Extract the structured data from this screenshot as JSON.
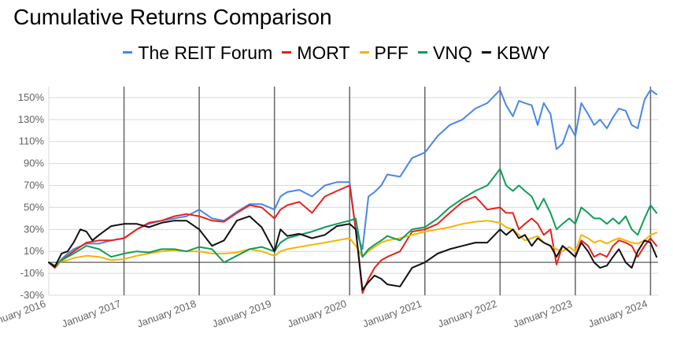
{
  "chart_data": {
    "type": "line",
    "title": "Cumulative Returns Comparison",
    "xlabel": "",
    "ylabel": "",
    "ylim": [
      -30,
      160
    ],
    "grid": true,
    "legend_position": "top",
    "y_ticks": [
      "-30%",
      "-10%",
      "10%",
      "30%",
      "50%",
      "70%",
      "90%",
      "110%",
      "130%",
      "150%"
    ],
    "y_tick_values": [
      -30,
      -10,
      10,
      30,
      50,
      70,
      90,
      110,
      130,
      150
    ],
    "x_ticks": [
      "January 2016",
      "January 2017",
      "January 2018",
      "January 2019",
      "January 2020",
      "January 2021",
      "January 2022",
      "January 2023",
      "January 2024"
    ],
    "x_tick_values": [
      2016,
      2017,
      2018,
      2019,
      2020,
      2021,
      2022,
      2023,
      2024
    ],
    "xlim": [
      2016,
      2024.1
    ],
    "series": [
      {
        "name": "The REIT Forum",
        "color": "#4a86e8",
        "x": [
          2016.0,
          2016.08,
          2016.17,
          2016.25,
          2016.33,
          2016.5,
          2016.67,
          2016.83,
          2017.0,
          2017.17,
          2017.33,
          2017.5,
          2017.67,
          2017.83,
          2018.0,
          2018.17,
          2018.33,
          2018.5,
          2018.67,
          2018.83,
          2019.0,
          2019.08,
          2019.17,
          2019.33,
          2019.5,
          2019.67,
          2019.83,
          2020.0,
          2020.08,
          2020.17,
          2020.25,
          2020.33,
          2020.42,
          2020.5,
          2020.67,
          2020.83,
          2021.0,
          2021.17,
          2021.33,
          2021.5,
          2021.67,
          2021.83,
          2022.0,
          2022.08,
          2022.17,
          2022.25,
          2022.33,
          2022.42,
          2022.5,
          2022.58,
          2022.67,
          2022.75,
          2022.83,
          2022.92,
          2023.0,
          2023.08,
          2023.17,
          2023.25,
          2023.33,
          2023.42,
          2023.5,
          2023.58,
          2023.67,
          2023.75,
          2023.83,
          2023.92,
          2024.0,
          2024.08
        ],
        "values": [
          0,
          -5,
          3,
          8,
          12,
          17,
          17,
          20,
          22,
          30,
          35,
          38,
          40,
          42,
          48,
          40,
          38,
          46,
          53,
          53,
          48,
          60,
          64,
          66,
          60,
          70,
          73,
          73,
          30,
          12,
          60,
          64,
          70,
          80,
          78,
          95,
          100,
          115,
          125,
          130,
          140,
          145,
          157,
          143,
          133,
          147,
          145,
          143,
          125,
          145,
          135,
          103,
          108,
          125,
          115,
          145,
          135,
          125,
          130,
          122,
          132,
          140,
          138,
          125,
          122,
          148,
          157,
          153
        ]
      },
      {
        "name": "MORT",
        "color": "#e8221a",
        "x": [
          2016.0,
          2016.08,
          2016.17,
          2016.25,
          2016.33,
          2016.5,
          2016.67,
          2016.83,
          2017.0,
          2017.17,
          2017.33,
          2017.5,
          2017.67,
          2017.83,
          2018.0,
          2018.17,
          2018.33,
          2018.5,
          2018.67,
          2018.83,
          2019.0,
          2019.08,
          2019.17,
          2019.33,
          2019.5,
          2019.67,
          2019.83,
          2020.0,
          2020.08,
          2020.17,
          2020.25,
          2020.33,
          2020.42,
          2020.5,
          2020.67,
          2020.83,
          2021.0,
          2021.17,
          2021.33,
          2021.5,
          2021.67,
          2021.83,
          2022.0,
          2022.08,
          2022.17,
          2022.25,
          2022.33,
          2022.42,
          2022.5,
          2022.58,
          2022.67,
          2022.75,
          2022.83,
          2022.92,
          2023.0,
          2023.08,
          2023.17,
          2023.25,
          2023.33,
          2023.42,
          2023.5,
          2023.58,
          2023.67,
          2023.75,
          2023.83,
          2023.92,
          2024.0,
          2024.08
        ],
        "values": [
          0,
          -5,
          2,
          6,
          10,
          18,
          20,
          20,
          22,
          30,
          36,
          38,
          42,
          44,
          42,
          38,
          37,
          45,
          52,
          50,
          40,
          48,
          52,
          55,
          45,
          60,
          65,
          70,
          30,
          -28,
          -15,
          -5,
          2,
          5,
          10,
          28,
          30,
          35,
          45,
          55,
          60,
          48,
          50,
          45,
          45,
          30,
          35,
          40,
          35,
          25,
          30,
          -2,
          15,
          10,
          5,
          20,
          15,
          5,
          8,
          5,
          15,
          20,
          18,
          15,
          5,
          15,
          22,
          15
        ]
      },
      {
        "name": "PFF",
        "color": "#f4b400",
        "x": [
          2016.0,
          2016.08,
          2016.17,
          2016.25,
          2016.33,
          2016.5,
          2016.67,
          2016.83,
          2017.0,
          2017.17,
          2017.33,
          2017.5,
          2017.67,
          2017.83,
          2018.0,
          2018.17,
          2018.33,
          2018.5,
          2018.67,
          2018.83,
          2019.0,
          2019.08,
          2019.17,
          2019.33,
          2019.5,
          2019.67,
          2019.83,
          2020.0,
          2020.08,
          2020.17,
          2020.25,
          2020.33,
          2020.42,
          2020.5,
          2020.67,
          2020.83,
          2021.0,
          2021.17,
          2021.33,
          2021.5,
          2021.67,
          2021.83,
          2022.0,
          2022.08,
          2022.17,
          2022.25,
          2022.33,
          2022.42,
          2022.5,
          2022.58,
          2022.67,
          2022.75,
          2022.83,
          2022.92,
          2023.0,
          2023.08,
          2023.17,
          2023.25,
          2023.33,
          2023.42,
          2023.5,
          2023.58,
          2023.67,
          2023.75,
          2023.83,
          2023.92,
          2024.0,
          2024.08
        ],
        "values": [
          0,
          -3,
          1,
          2,
          4,
          6,
          5,
          2,
          3,
          6,
          8,
          10,
          11,
          10,
          10,
          8,
          8,
          9,
          12,
          10,
          6,
          10,
          12,
          14,
          16,
          18,
          20,
          22,
          15,
          5,
          10,
          14,
          18,
          20,
          22,
          25,
          28,
          30,
          32,
          35,
          37,
          38,
          36,
          32,
          30,
          25,
          20,
          22,
          24,
          18,
          15,
          12,
          10,
          14,
          10,
          25,
          22,
          18,
          20,
          17,
          20,
          22,
          20,
          18,
          17,
          20,
          25,
          27
        ]
      },
      {
        "name": "VNQ",
        "color": "#0f9d58",
        "x": [
          2016.0,
          2016.08,
          2016.17,
          2016.25,
          2016.33,
          2016.5,
          2016.67,
          2016.83,
          2017.0,
          2017.17,
          2017.33,
          2017.5,
          2017.67,
          2017.83,
          2018.0,
          2018.17,
          2018.33,
          2018.5,
          2018.67,
          2018.83,
          2019.0,
          2019.08,
          2019.17,
          2019.33,
          2019.5,
          2019.67,
          2019.83,
          2020.0,
          2020.08,
          2020.17,
          2020.25,
          2020.33,
          2020.42,
          2020.5,
          2020.67,
          2020.83,
          2021.0,
          2021.17,
          2021.33,
          2021.5,
          2021.67,
          2021.83,
          2022.0,
          2022.08,
          2022.17,
          2022.25,
          2022.33,
          2022.42,
          2022.5,
          2022.58,
          2022.67,
          2022.75,
          2022.83,
          2022.92,
          2023.0,
          2023.08,
          2023.17,
          2023.25,
          2023.33,
          2023.42,
          2023.5,
          2023.58,
          2023.67,
          2023.75,
          2023.83,
          2023.92,
          2024.0,
          2024.08
        ],
        "values": [
          0,
          -3,
          2,
          5,
          8,
          15,
          12,
          5,
          8,
          10,
          9,
          12,
          12,
          10,
          14,
          12,
          0,
          6,
          12,
          14,
          10,
          18,
          22,
          25,
          28,
          32,
          35,
          38,
          40,
          5,
          12,
          16,
          20,
          24,
          20,
          30,
          32,
          40,
          50,
          58,
          65,
          70,
          85,
          70,
          65,
          70,
          65,
          60,
          48,
          58,
          45,
          30,
          35,
          40,
          35,
          50,
          45,
          40,
          40,
          35,
          40,
          35,
          42,
          30,
          25,
          40,
          52,
          45
        ]
      },
      {
        "name": "KBWY",
        "color": "#111111",
        "x": [
          2016.0,
          2016.08,
          2016.17,
          2016.25,
          2016.33,
          2016.42,
          2016.5,
          2016.58,
          2016.67,
          2016.83,
          2017.0,
          2017.17,
          2017.33,
          2017.5,
          2017.67,
          2017.83,
          2018.0,
          2018.17,
          2018.33,
          2018.5,
          2018.67,
          2018.83,
          2019.0,
          2019.08,
          2019.17,
          2019.33,
          2019.5,
          2019.67,
          2019.83,
          2020.0,
          2020.08,
          2020.17,
          2020.25,
          2020.33,
          2020.42,
          2020.5,
          2020.67,
          2020.83,
          2021.0,
          2021.17,
          2021.33,
          2021.5,
          2021.67,
          2021.83,
          2022.0,
          2022.08,
          2022.17,
          2022.25,
          2022.33,
          2022.42,
          2022.5,
          2022.58,
          2022.67,
          2022.75,
          2022.83,
          2022.92,
          2023.0,
          2023.08,
          2023.17,
          2023.25,
          2023.33,
          2023.42,
          2023.5,
          2023.58,
          2023.67,
          2023.75,
          2023.83,
          2023.92,
          2024.0,
          2024.08
        ],
        "values": [
          0,
          -4,
          8,
          10,
          18,
          30,
          28,
          20,
          25,
          33,
          35,
          35,
          32,
          36,
          38,
          38,
          30,
          15,
          20,
          38,
          42,
          32,
          10,
          30,
          24,
          26,
          22,
          25,
          33,
          35,
          30,
          -25,
          -18,
          -12,
          -15,
          -20,
          -22,
          -5,
          0,
          8,
          12,
          15,
          18,
          18,
          30,
          25,
          30,
          22,
          25,
          15,
          22,
          18,
          15,
          5,
          15,
          10,
          5,
          18,
          10,
          0,
          -5,
          -3,
          5,
          12,
          0,
          -5,
          10,
          20,
          18,
          5
        ]
      }
    ]
  }
}
